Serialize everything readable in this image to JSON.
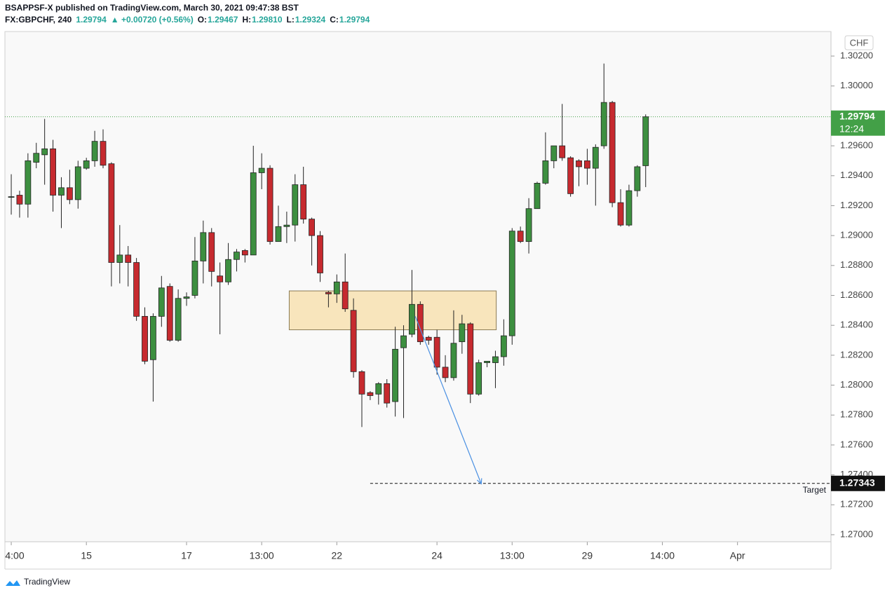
{
  "header": {
    "publisher": "BSAPPSF-X published on TradingView.com, March 30, 2021 09:47:38 BST",
    "symbol": "FX:GBPCHF, 240",
    "price": "1.29794",
    "change": "▲ +0.00720 (+0.56%)",
    "open_label": "O:",
    "open": "1.29467",
    "high_label": "H:",
    "high": "1.29810",
    "low_label": "L:",
    "low": "1.29324",
    "close_label": "C:",
    "close": "1.29794"
  },
  "footer": "TradingView",
  "chart_data": {
    "type": "candlestick",
    "currency": "CHF",
    "up_color": "#3d8f40",
    "down_color": "#c62a2f",
    "grid": false,
    "open": [
      1.2926,
      1.2927,
      1.2921,
      1.2949,
      1.2954,
      1.2958,
      1.2927,
      1.2932,
      1.2924,
      1.2945,
      1.295,
      1.2963,
      1.2948,
      1.2882,
      1.2887,
      1.2882,
      1.2846,
      1.2817,
      1.2846,
      1.2866,
      1.283,
      1.2858,
      1.286,
      1.2883,
      1.2902,
      1.2873,
      1.2869,
      1.2884,
      1.289,
      1.2887,
      1.2942,
      1.2945,
      1.2896,
      1.2906,
      1.2907,
      1.2934,
      1.2911,
      1.29,
      1.2862,
      1.2861,
      1.2869,
      1.285,
      1.2809,
      1.2795,
      1.2794,
      1.2801,
      1.2789,
      1.2825,
      1.2834,
      1.2854,
      1.2832,
      1.2832,
      1.2812,
      1.2805,
      1.2829,
      1.2841,
      1.2794,
      1.2815,
      1.2815,
      1.2819,
      1.2833,
      1.2903,
      1.2896,
      1.2918,
      1.2935,
      1.295,
      1.296,
      1.2952,
      1.295,
      1.295,
      1.2945,
      1.296,
      1.2989,
      1.2922,
      1.2907,
      1.293,
      1.29467
    ],
    "high": [
      1.2941,
      1.293,
      1.2955,
      1.2962,
      1.2978,
      1.2964,
      1.2939,
      1.2944,
      1.295,
      1.2952,
      1.297,
      1.2971,
      1.2949,
      1.2907,
      1.2893,
      1.2885,
      1.2852,
      1.2848,
      1.2873,
      1.2868,
      1.2864,
      1.2862,
      1.2899,
      1.291,
      1.2905,
      1.2882,
      1.2895,
      1.2891,
      1.2891,
      1.296,
      1.2955,
      1.2947,
      1.292,
      1.2916,
      1.2941,
      1.2946,
      1.2912,
      1.2903,
      1.2863,
      1.2874,
      1.2888,
      1.2858,
      1.281,
      1.2796,
      1.2802,
      1.2804,
      1.2839,
      1.284,
      1.2877,
      1.2856,
      1.2833,
      1.2837,
      1.282,
      1.285,
      1.2847,
      1.2842,
      1.2817,
      1.2816,
      1.2823,
      1.2844,
      1.2905,
      1.2906,
      1.2925,
      1.2936,
      1.2969,
      1.296,
      1.2988,
      1.2953,
      1.2951,
      1.2958,
      1.2961,
      1.3015,
      1.299,
      1.2931,
      1.2934,
      1.2947,
      1.2981
    ],
    "low": [
      1.2914,
      1.2912,
      1.2912,
      1.2945,
      1.2934,
      1.2916,
      1.2905,
      1.2921,
      1.2918,
      1.2944,
      1.2946,
      1.2945,
      1.2866,
      1.2868,
      1.2866,
      1.2843,
      1.2814,
      1.2789,
      1.2839,
      1.2829,
      1.2829,
      1.2853,
      1.2858,
      1.2868,
      1.2866,
      1.2834,
      1.2867,
      1.2876,
      1.2882,
      1.2887,
      1.2931,
      1.2894,
      1.2896,
      1.2895,
      1.2896,
      1.2908,
      1.288,
      1.2869,
      1.2852,
      1.2855,
      1.2849,
      1.2805,
      1.2772,
      1.279,
      1.2787,
      1.2785,
      1.2779,
      1.2778,
      1.2832,
      1.2827,
      1.2827,
      1.2807,
      1.2802,
      1.2803,
      1.2821,
      1.2788,
      1.2793,
      1.2812,
      1.2798,
      1.2813,
      1.2827,
      1.2895,
      1.2888,
      1.2918,
      1.2934,
      1.2945,
      1.295,
      1.2926,
      1.2933,
      1.2934,
      1.292,
      1.2958,
      1.2919,
      1.2906,
      1.2906,
      1.2926,
      1.29324
    ],
    "close": [
      1.2926,
      1.2921,
      1.295,
      1.2955,
      1.2958,
      1.2927,
      1.2932,
      1.2924,
      1.2946,
      1.295,
      1.2963,
      1.2947,
      1.2882,
      1.2887,
      1.2882,
      1.2846,
      1.2816,
      1.2846,
      1.2865,
      1.283,
      1.2858,
      1.2859,
      1.2883,
      1.2902,
      1.2876,
      1.2869,
      1.2884,
      1.2889,
      1.2887,
      1.2942,
      1.2945,
      1.2896,
      1.2906,
      1.2907,
      1.2934,
      1.2911,
      1.29,
      1.2875,
      1.2861,
      1.2869,
      1.2851,
      1.2809,
      1.2794,
      1.2793,
      1.2801,
      1.2788,
      1.2824,
      1.2833,
      1.2854,
      1.2829,
      1.283,
      1.2812,
      1.2805,
      1.2828,
      1.2841,
      1.2794,
      1.2815,
      1.2816,
      1.2819,
      1.2833,
      1.2903,
      1.2896,
      1.2918,
      1.2935,
      1.295,
      1.296,
      1.2952,
      1.2928,
      1.2946,
      1.2945,
      1.2959,
      1.2989,
      1.2922,
      1.2907,
      1.293,
      1.2946,
      1.29794
    ],
    "xlim": [
      -0.76,
      98.2
    ],
    "ylim": [
      1.26953,
      1.30364
    ],
    "xticks": [
      {
        "value": 0,
        "label": "4:00"
      },
      {
        "value": 9,
        "label": "15"
      },
      {
        "value": 21,
        "label": "17"
      },
      {
        "value": 30,
        "label": "13:00"
      },
      {
        "value": 39,
        "label": "22"
      },
      {
        "value": 51,
        "label": "24"
      },
      {
        "value": 60,
        "label": "13:00"
      },
      {
        "value": 69,
        "label": "29"
      },
      {
        "value": 78,
        "label": "14:00"
      },
      {
        "value": 87,
        "label": "Apr"
      }
    ],
    "yticks": [
      {
        "value": 1.27,
        "label": "1.27000"
      },
      {
        "value": 1.272,
        "label": "1.27200"
      },
      {
        "value": 1.274,
        "label": "1.27400"
      },
      {
        "value": 1.276,
        "label": "1.27600"
      },
      {
        "value": 1.278,
        "label": "1.27800"
      },
      {
        "value": 1.28,
        "label": "1.28000"
      },
      {
        "value": 1.282,
        "label": "1.28200"
      },
      {
        "value": 1.284,
        "label": "1.28400"
      },
      {
        "value": 1.286,
        "label": "1.28600"
      },
      {
        "value": 1.288,
        "label": "1.28800"
      },
      {
        "value": 1.29,
        "label": "1.29000"
      },
      {
        "value": 1.292,
        "label": "1.29200"
      },
      {
        "value": 1.294,
        "label": "1.29400"
      },
      {
        "value": 1.296,
        "label": "1.29600"
      },
      {
        "value": 1.298,
        "label": "1.29800"
      },
      {
        "value": 1.3,
        "label": "1.30000"
      },
      {
        "value": 1.302,
        "label": "1.30200"
      }
    ],
    "last_price": {
      "value": 1.29794,
      "countdown": "12:24",
      "color": "#43a047"
    },
    "target": {
      "value": 1.27343,
      "label": "Target",
      "start": 43
    },
    "zone": {
      "x": [
        33.3,
        58.1
      ],
      "y": [
        1.2837,
        1.2863
      ]
    },
    "arrow": {
      "x": [
        48.4,
        56.3
      ],
      "y": [
        1.2846,
        1.2734
      ]
    }
  }
}
